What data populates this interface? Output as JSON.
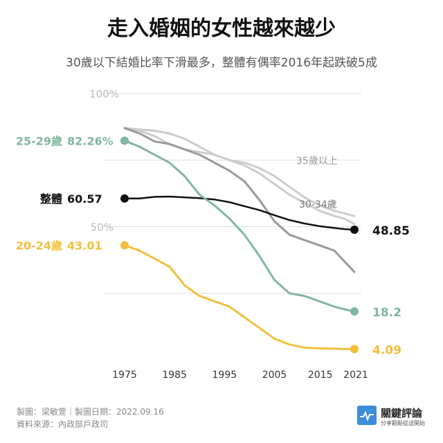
{
  "header": {
    "title": "走入婚姻的女性越來越少",
    "subtitle": "30歲以下結婚比率下滑最多，整體有偶率2016年起跌破5成"
  },
  "footer": {
    "credit": "製圖：梁敏萱｜製圖日期：2022.09.16",
    "source": "資料來源：內政部戶政司",
    "logo_name": "關鍵評論",
    "logo_tagline": "分享觀點從這開始",
    "logo_icon": "pulse-icon"
  },
  "colors": {
    "age_25_29": "#7fb7a0",
    "overall": "#111111",
    "age_20_24": "#f2bf3a",
    "age_30_34": "#999999",
    "age_35_up": "#cccccc",
    "gridline": "#dddddd",
    "logo_blue": "#3a8fd6"
  },
  "chart_data": {
    "type": "line",
    "x_ticks": [
      "1975",
      "1985",
      "1995",
      "2005",
      "2015",
      "2021"
    ],
    "y_ticks": [
      "100%",
      "50%"
    ],
    "ylim": [
      0,
      100
    ],
    "xlim": [
      1975,
      2021
    ],
    "grid": true,
    "series": [
      {
        "name": "35歲以上",
        "key": "age_35_up",
        "x": [
          1975,
          1978,
          1981,
          1984,
          1987,
          1990,
          1993,
          1996,
          1999,
          2002,
          2005,
          2008,
          2011,
          2014,
          2017,
          2019,
          2021
        ],
        "y": [
          87,
          86.5,
          86,
          85,
          83,
          80,
          77,
          75,
          74,
          72,
          69,
          65,
          61,
          58,
          56,
          55,
          54
        ],
        "label": "35歲以上"
      },
      {
        "name": "35歲以上 (淺色)",
        "key": "age_35_up",
        "x": [
          1975,
          1978,
          1981,
          1984,
          1987,
          1990,
          1993,
          1996,
          1999,
          2002,
          2005,
          2008,
          2011,
          2014,
          2017,
          2019,
          2021
        ],
        "y": [
          87,
          86,
          84,
          81,
          79,
          78,
          77,
          75,
          73,
          70,
          66,
          62,
          59,
          56,
          54,
          53,
          51
        ]
      },
      {
        "name": "30-34歲",
        "key": "age_30_34",
        "x": [
          1975,
          1978,
          1981,
          1984,
          1987,
          1990,
          1993,
          1996,
          1999,
          2002,
          2005,
          2008,
          2011,
          2014,
          2017,
          2019,
          2021
        ],
        "y": [
          87,
          85,
          82,
          81,
          79,
          77,
          74,
          71,
          67,
          60,
          52,
          47,
          45,
          43,
          41,
          37,
          33
        ],
        "label": "30-34歲"
      },
      {
        "name": "整體",
        "key": "overall",
        "x": [
          1975,
          1978,
          1981,
          1984,
          1987,
          1990,
          1993,
          1996,
          1999,
          2002,
          2005,
          2008,
          2011,
          2014,
          2017,
          2019,
          2021
        ],
        "y": [
          60.57,
          60.6,
          61.2,
          61.3,
          61.0,
          60.7,
          60.2,
          59.2,
          57.7,
          56.2,
          54.3,
          52.5,
          51.2,
          50.2,
          49.5,
          49.1,
          48.85
        ],
        "label_left": "整體",
        "value_left": "60.57",
        "value_right": "48.85"
      },
      {
        "name": "25-29歲",
        "key": "age_25_29",
        "x": [
          1975,
          1978,
          1981,
          1984,
          1987,
          1990,
          1993,
          1996,
          1999,
          2002,
          2005,
          2008,
          2011,
          2014,
          2017,
          2019,
          2021
        ],
        "y": [
          82.26,
          80,
          77,
          74,
          69,
          62,
          58,
          53,
          47,
          39,
          30,
          25,
          24,
          22,
          20,
          19,
          18.2
        ],
        "label_left": "25-29歲",
        "value_left": "82.26%",
        "value_right": "18.2"
      },
      {
        "name": "20-24歲",
        "key": "age_20_24",
        "x": [
          1975,
          1978,
          1981,
          1984,
          1987,
          1990,
          1993,
          1996,
          1999,
          2002,
          2005,
          2008,
          2011,
          2014,
          2017,
          2019,
          2021
        ],
        "y": [
          43.01,
          41,
          38,
          35,
          28,
          24,
          22,
          20,
          16,
          12,
          8,
          5.8,
          4.6,
          4.3,
          4.2,
          4.1,
          4.09
        ],
        "label_left": "20-24歲",
        "value_left": "43.01",
        "value_right": "4.09"
      }
    ]
  }
}
